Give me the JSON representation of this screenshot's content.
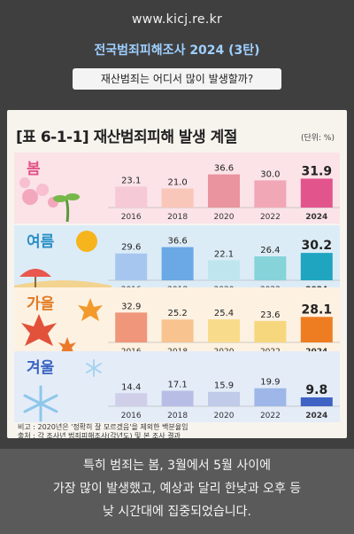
{
  "header": {
    "url": "www.kicj.re.kr",
    "headline": "전국범죄피해조사 2024 (3탄)",
    "subtitle": "재산범죄는 어디서 많이 발생할까?"
  },
  "chart_data": {
    "type": "bar",
    "title": "[표 6-1-1] 재산범죄피해 발생 계절",
    "unit": "(단위: %)",
    "categories": [
      "2016",
      "2018",
      "2020",
      "2022",
      "2024"
    ],
    "ylim": [
      0,
      45
    ],
    "panels": [
      {
        "season": "봄",
        "values": [
          23.1,
          21.0,
          36.6,
          30.0,
          31.9
        ],
        "colors": [
          "#f6c9d6",
          "#f8c7b9",
          "#e9949e",
          "#f1a7b5",
          "#e1558c"
        ],
        "band": "#fbe3e8",
        "label_color": "#e25489"
      },
      {
        "season": "여름",
        "values": [
          29.6,
          36.6,
          22.1,
          26.4,
          30.2
        ],
        "colors": [
          "#a7c6ef",
          "#6aa8e6",
          "#bfe6ef",
          "#86d3d9",
          "#1fa5c0"
        ],
        "band": "#dcecf7",
        "label_color": "#2a8fc6"
      },
      {
        "season": "가을",
        "values": [
          32.9,
          25.2,
          25.4,
          23.6,
          28.1
        ],
        "colors": [
          "#f0967a",
          "#f8c38f",
          "#f8dc8b",
          "#f6d77d",
          "#ee7d22"
        ],
        "band": "#fdf1e1",
        "label_color": "#e27a23"
      },
      {
        "season": "겨울",
        "values": [
          14.4,
          17.1,
          15.9,
          19.9,
          9.8
        ],
        "colors": [
          "#cfcfea",
          "#b8bde6",
          "#bfcbe8",
          "#9fb7e8",
          "#3e63c4"
        ],
        "band": "#e4ecf8",
        "label_color": "#3a63c2"
      }
    ]
  },
  "notes": {
    "note1": "비고 : 2020년은 '정확히 잘 모르겠음'을 제외한 백분율임",
    "note2": "출처 : 각 조사년 범죄피해조사(각년도) 및 본 조사 결과"
  },
  "caption": {
    "line1": "특히 범죄는 봄, 3월에서 5월 사이에",
    "line2": "가장 많이 발생했고, 예상과 달리 한낮과 오후 등",
    "line3": "낮 시간대에 집중되었습니다."
  }
}
